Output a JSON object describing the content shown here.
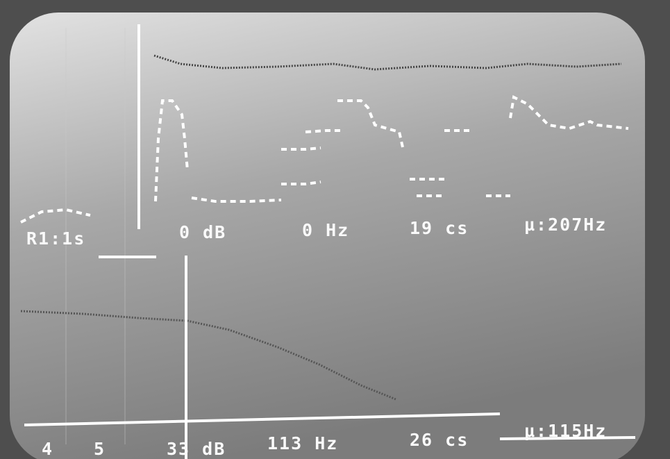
{
  "top_readout": {
    "label": "R1:1s",
    "level": "0 dB",
    "frequency": "0 Hz",
    "duration": "19 cs",
    "mean": "µ:207Hz"
  },
  "bottom_readout": {
    "left_a": "4",
    "left_b": "5",
    "level": "33 dB",
    "frequency": "113 Hz",
    "duration": "26 cs",
    "mean": "µ:115Hz"
  }
}
